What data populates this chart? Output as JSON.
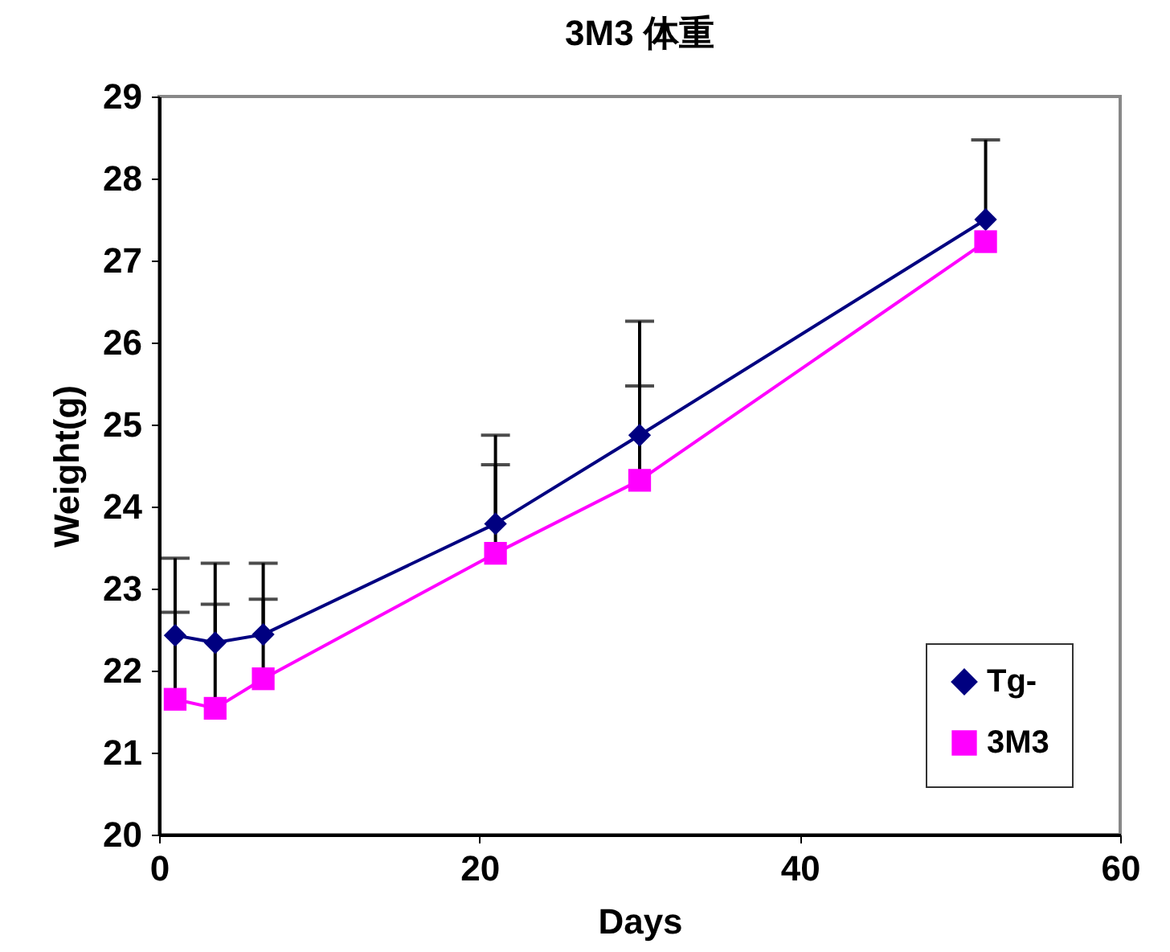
{
  "chart_data": {
    "type": "line",
    "title": "3M3  体重",
    "xlabel": "Days",
    "ylabel": "Weight(g)",
    "x": [
      1,
      3.5,
      6.5,
      21,
      30,
      51.6
    ],
    "series": [
      {
        "name": "Tg-",
        "color": "#000080",
        "marker": "diamond",
        "values": [
          22.43,
          22.34,
          22.44,
          23.79,
          24.87,
          27.5
        ],
        "errors": [
          [
            22.43,
            23.37
          ],
          [
            22.34,
            23.31
          ],
          [
            22.44,
            23.31
          ],
          [
            23.79,
            24.87
          ],
          [
            24.87,
            26.26
          ],
          [
            27.5,
            28.47
          ]
        ]
      },
      {
        "name": "3M3",
        "color": "#ff00ff",
        "marker": "square",
        "values": [
          21.65,
          21.54,
          21.9,
          23.43,
          24.32,
          27.23
        ],
        "errors": [
          [
            21.65,
            22.71
          ],
          [
            21.54,
            22.81
          ],
          [
            21.9,
            22.87
          ],
          [
            23.43,
            24.51
          ],
          [
            24.32,
            25.47
          ],
          null
        ]
      }
    ],
    "xlim": [
      0,
      60
    ],
    "xticks": [
      0,
      20,
      40,
      60
    ],
    "ylim": [
      20,
      29
    ],
    "yticks": [
      20,
      21,
      22,
      23,
      24,
      25,
      26,
      27,
      28,
      29
    ],
    "grid": false,
    "legend": "bottom right"
  }
}
